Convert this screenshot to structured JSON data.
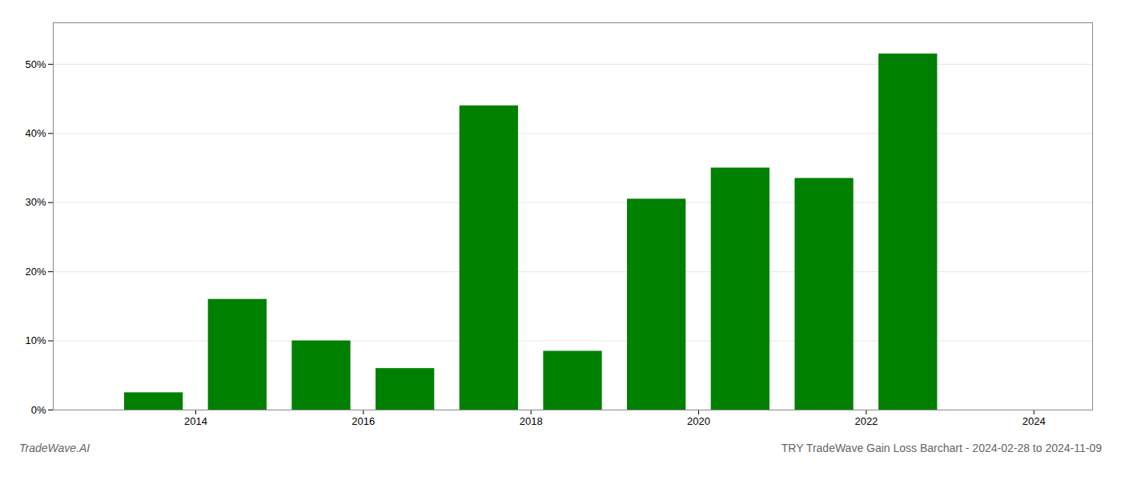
{
  "chart_data": {
    "type": "bar",
    "title": "TRY TradeWave Gain Loss Barchart - 2024-02-28 to 2024-11-09",
    "annotations": [
      "TradeWave.AI"
    ],
    "x": [
      2013.5,
      2014.5,
      2015.5,
      2016.5,
      2017.5,
      2018.5,
      2019.5,
      2020.5,
      2021.5,
      2022.5
    ],
    "values": [
      2.5,
      16.0,
      10.0,
      6.0,
      44.0,
      8.5,
      30.5,
      35.0,
      33.5,
      51.5
    ],
    "color": "#008000",
    "xlim": [
      2012.3,
      2024.7
    ],
    "xticks": [
      2014,
      2016,
      2018,
      2020,
      2022,
      2024
    ],
    "ylim": [
      0,
      56
    ],
    "yticks": [
      {
        "value": 0,
        "label": "0%"
      },
      {
        "value": 10,
        "label": "10%"
      },
      {
        "value": 20,
        "label": "20%"
      },
      {
        "value": 30,
        "label": "30%"
      },
      {
        "value": 40,
        "label": "40%"
      },
      {
        "value": 50,
        "label": "50%"
      }
    ],
    "grid": true
  }
}
